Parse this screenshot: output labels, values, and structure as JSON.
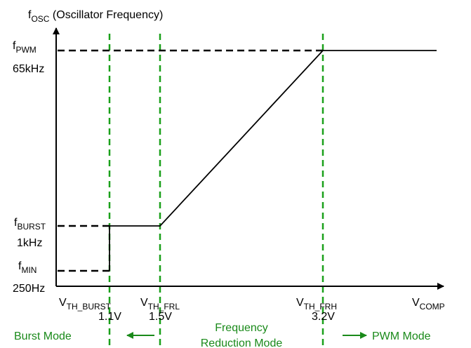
{
  "y_axis": {
    "main": "f",
    "sub": "OSC",
    "rest": " (Oscillator Frequency)"
  },
  "y_levels": [
    {
      "main": "f",
      "sub": "PWM",
      "value": "65kHz"
    },
    {
      "main": "f",
      "sub": "BURST",
      "value": "1kHz"
    },
    {
      "main": "f",
      "sub": "MIN",
      "value": "250Hz"
    }
  ],
  "x_thresholds": [
    {
      "main": "V",
      "sub": "TH_BURST",
      "value": "1.1V"
    },
    {
      "main": "V",
      "sub": "TH_FRL",
      "value": "1.5V"
    },
    {
      "main": "V",
      "sub": "TH_FRH",
      "value": "3.2V"
    }
  ],
  "x_axis": {
    "main": "V",
    "sub": "COMP"
  },
  "modes": [
    "Burst Mode",
    "Frequency",
    "Reduction Mode",
    "PWM Mode"
  ]
}
